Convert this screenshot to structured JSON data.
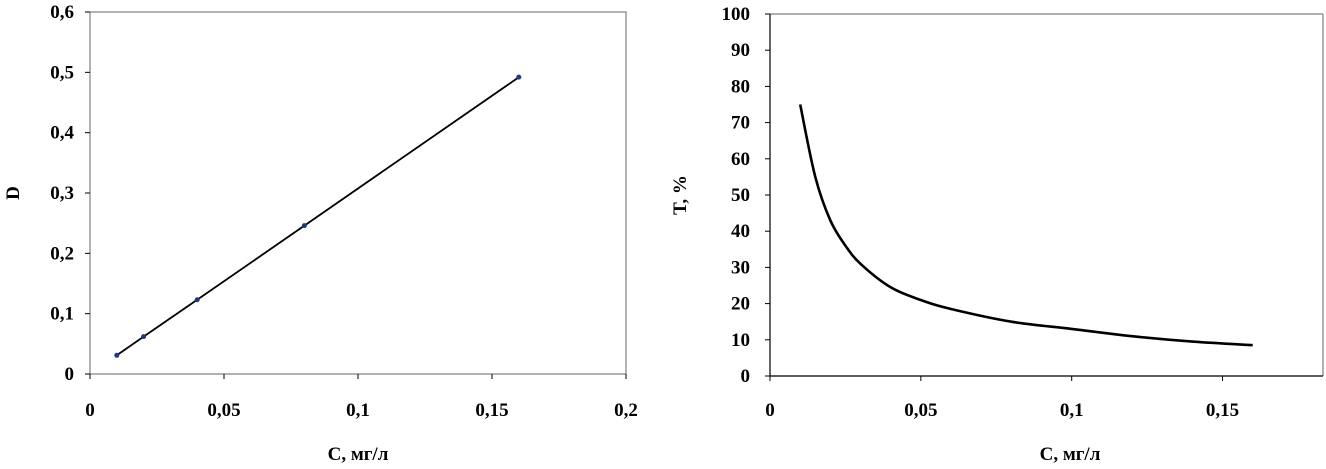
{
  "chart_data": [
    {
      "type": "line",
      "xlabel": "C, мг/л",
      "ylabel": "D",
      "xlim": [
        0,
        0.2
      ],
      "ylim": [
        0,
        0.6
      ],
      "x_ticks": [
        "0",
        "0,05",
        "0,1",
        "0,15",
        "0,2"
      ],
      "y_ticks": [
        "0",
        "0,1",
        "0,2",
        "0,3",
        "0,4",
        "0,5",
        "0,6"
      ],
      "grid": false,
      "frame": "box",
      "series": [
        {
          "x": [
            0.01,
            0.02,
            0.04,
            0.08,
            0.16
          ],
          "y": [
            0.031,
            0.062,
            0.123,
            0.246,
            0.492
          ],
          "markers": true
        }
      ]
    },
    {
      "type": "line",
      "xlabel": "C, мг/л",
      "ylabel": "T, %",
      "xlim": [
        0,
        0.1833
      ],
      "ylim": [
        0,
        100
      ],
      "x_ticks": [
        "0",
        "0,05",
        "0,1",
        "0,15"
      ],
      "y_ticks": [
        "0",
        "10",
        "20",
        "30",
        "40",
        "50",
        "60",
        "70",
        "80",
        "90",
        "100"
      ],
      "grid": false,
      "frame": "top-right-left",
      "series": [
        {
          "x": [
            0.01,
            0.015,
            0.02,
            0.025,
            0.03,
            0.04,
            0.05,
            0.06,
            0.08,
            0.1,
            0.12,
            0.14,
            0.16
          ],
          "y": [
            75,
            55,
            43,
            36,
            31,
            24.5,
            21,
            18.5,
            15,
            13,
            11,
            9.5,
            8.5
          ],
          "markers": false
        }
      ]
    }
  ]
}
